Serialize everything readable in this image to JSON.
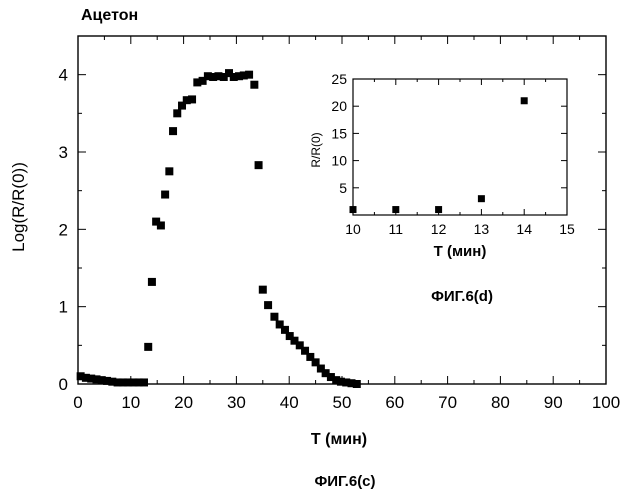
{
  "chart_data": [
    {
      "type": "scatter",
      "title": "Ацетон",
      "xlabel": "T (мин)",
      "ylabel": "Log(R/R(0))",
      "xlim": [
        0,
        100
      ],
      "ylim": [
        0,
        4.5
      ],
      "xticks": [
        "0",
        "10",
        "20",
        "30",
        "40",
        "50",
        "60",
        "70",
        "80",
        "90",
        "100"
      ],
      "yticks": [
        "0",
        "1",
        "2",
        "3",
        "4"
      ],
      "grid": false,
      "caption": "ФИГ.6(c)",
      "series": [
        {
          "x": [
            0.5,
            1.5,
            2.5,
            3.5,
            4.5,
            5.5,
            6.5,
            7.5,
            8.5,
            9.5,
            10.5,
            11.5,
            12.5,
            13.3,
            14.0,
            14.8,
            15.7,
            16.5,
            17.3,
            18.0,
            18.8,
            19.7,
            20.6,
            21.6,
            22.6,
            23.6,
            24.6,
            25.6,
            26.6,
            27.6,
            28.6,
            29.5,
            30.5,
            31.4,
            32.4,
            33.4,
            34.2,
            35.0,
            36.0,
            37.2,
            38.2,
            39.2,
            40.1,
            41.0,
            42.0,
            43.0,
            44.0,
            45.0,
            46.0,
            46.9,
            47.9,
            48.9,
            49.8,
            50.8,
            51.8,
            52.8
          ],
          "y": [
            0.1,
            0.08,
            0.07,
            0.06,
            0.05,
            0.04,
            0.03,
            0.02,
            0.02,
            0.02,
            0.02,
            0.02,
            0.02,
            0.48,
            1.32,
            2.1,
            2.05,
            2.45,
            2.75,
            3.27,
            3.5,
            3.6,
            3.67,
            3.68,
            3.9,
            3.92,
            3.98,
            3.97,
            3.98,
            3.97,
            4.02,
            3.97,
            3.98,
            3.99,
            4.0,
            3.87,
            2.83,
            1.22,
            1.02,
            0.87,
            0.77,
            0.7,
            0.62,
            0.56,
            0.5,
            0.43,
            0.35,
            0.28,
            0.2,
            0.14,
            0.09,
            0.05,
            0.03,
            0.02,
            0.01,
            0.0
          ]
        }
      ]
    },
    {
      "type": "scatter",
      "xlabel": "T (мин)",
      "ylabel": "R/R(0)",
      "xlim": [
        10,
        15
      ],
      "ylim": [
        0,
        25
      ],
      "xticks": [
        "10",
        "11",
        "12",
        "13",
        "14",
        "15"
      ],
      "yticks": [
        "5",
        "10",
        "15",
        "20",
        "25"
      ],
      "grid": false,
      "caption": "ФИГ.6(d)",
      "series": [
        {
          "x": [
            10,
            11,
            12,
            13,
            14
          ],
          "y": [
            1,
            1,
            1,
            3,
            21
          ]
        }
      ]
    }
  ]
}
